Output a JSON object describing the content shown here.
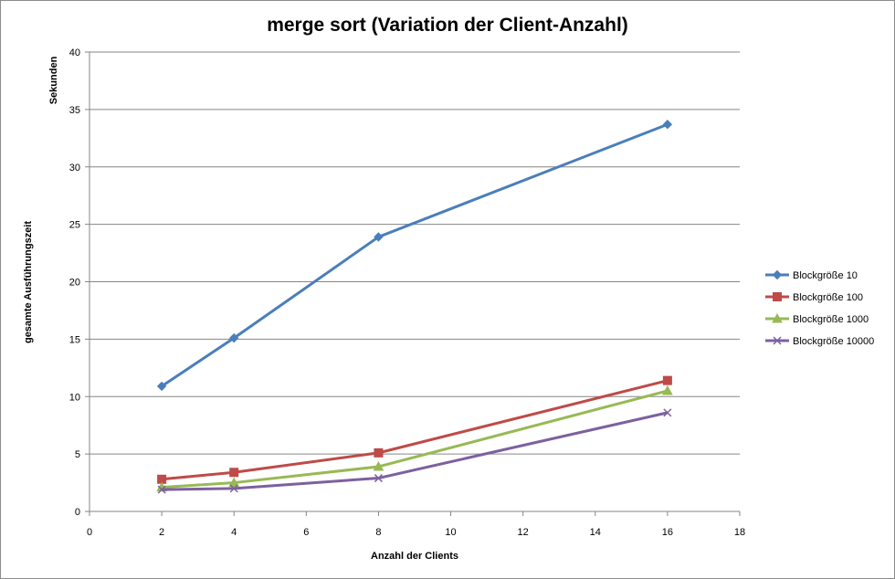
{
  "chart_data": {
    "type": "line",
    "title": "merge sort (Variation der Client-Anzahl)",
    "xlabel": "Anzahl der Clients",
    "ylabel": "gesamte Ausführungszeit",
    "ylabel_unit": "Sekunden",
    "xlim": [
      0,
      18
    ],
    "ylim": [
      0,
      40
    ],
    "xticks": [
      0,
      2,
      4,
      6,
      8,
      10,
      12,
      14,
      16,
      18
    ],
    "yticks": [
      0,
      5,
      10,
      15,
      20,
      25,
      30,
      35,
      40
    ],
    "grid": "horizontal",
    "legend_position": "right",
    "x": [
      2,
      4,
      8,
      16
    ],
    "series": [
      {
        "name": "Blockgröße 10",
        "values": [
          10.9,
          15.1,
          23.9,
          33.7
        ],
        "color": "#4a7ebb",
        "marker": "diamond"
      },
      {
        "name": "Blockgröße 100",
        "values": [
          2.8,
          3.4,
          5.1,
          11.4
        ],
        "color": "#be4b48",
        "marker": "square"
      },
      {
        "name": "Blockgröße 1000",
        "values": [
          2.1,
          2.5,
          3.9,
          10.5
        ],
        "color": "#98b954",
        "marker": "triangle"
      },
      {
        "name": "Blockgröße 10000",
        "values": [
          1.9,
          2.0,
          2.9,
          8.6
        ],
        "color": "#7d60a0",
        "marker": "x"
      }
    ]
  }
}
